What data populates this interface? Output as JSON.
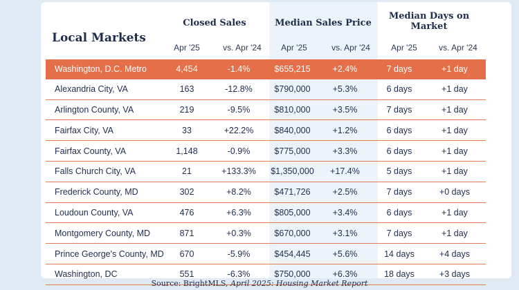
{
  "title": "Local Markets",
  "groups": [
    "Closed Sales",
    "Median Sales Price",
    "Median Days on Market"
  ],
  "subheaders": [
    "Apr '25",
    "vs. Apr '24",
    "Apr '25",
    "vs. Apr '24",
    "Apr '25",
    "vs. Apr '24"
  ],
  "rows": [
    {
      "name": "Washington, D.C. Metro",
      "v": [
        "4,454",
        "-1.4%",
        "$655,215",
        "+2.4%",
        "7 days",
        "+1 day"
      ],
      "highlight": true
    },
    {
      "name": "Alexandria City, VA",
      "v": [
        "163",
        "-12.8%",
        "$790,000",
        "+5.3%",
        "6 days",
        "+1 day"
      ]
    },
    {
      "name": "Arlington County, VA",
      "v": [
        "219",
        "-9.5%",
        "$810,000",
        "+3.5%",
        "7 days",
        "+1 day"
      ]
    },
    {
      "name": "Fairfax City, VA",
      "v": [
        "33",
        "+22.2%",
        "$840,000",
        "+1.2%",
        "6 days",
        "+1 day"
      ]
    },
    {
      "name": "Fairfax County, VA",
      "v": [
        "1,148",
        "-0.9%",
        "$775,000",
        "+3.3%",
        "6 days",
        "+1 day"
      ]
    },
    {
      "name": "Falls Church City, VA",
      "v": [
        "21",
        "+133.3%",
        "$1,350,000",
        "+17.4%",
        "5 days",
        "+1 day"
      ]
    },
    {
      "name": "Frederick County, MD",
      "v": [
        "302",
        "+8.2%",
        "$471,726",
        "+2.5%",
        "7 days",
        "+0 days"
      ]
    },
    {
      "name": "Loudoun County, VA",
      "v": [
        "476",
        "+6.3%",
        "$805,000",
        "+3.4%",
        "6 days",
        "+1 day"
      ]
    },
    {
      "name": "Montgomery County, MD",
      "v": [
        "871",
        "+0.3%",
        "$670,000",
        "+3.1%",
        "7 days",
        "+1 day"
      ]
    },
    {
      "name": "Prince George's County, MD",
      "v": [
        "670",
        "-5.9%",
        "$454,445",
        "+5.6%",
        "14 days",
        "+4 days"
      ]
    },
    {
      "name": "Washington,  DC",
      "v": [
        "551",
        "-6.3%",
        "$750,000",
        "+6.3%",
        "18 days",
        "+3 days"
      ]
    }
  ],
  "source": {
    "prefix": "Source: BrightMLS, ",
    "report": "April 2025: Housing Market Report"
  },
  "colors": {
    "highlight": "#e46f49",
    "divider": "#e07a53",
    "navy": "#1f2d4d",
    "band": "#ecf3fa",
    "background": "#dfeaf4"
  }
}
